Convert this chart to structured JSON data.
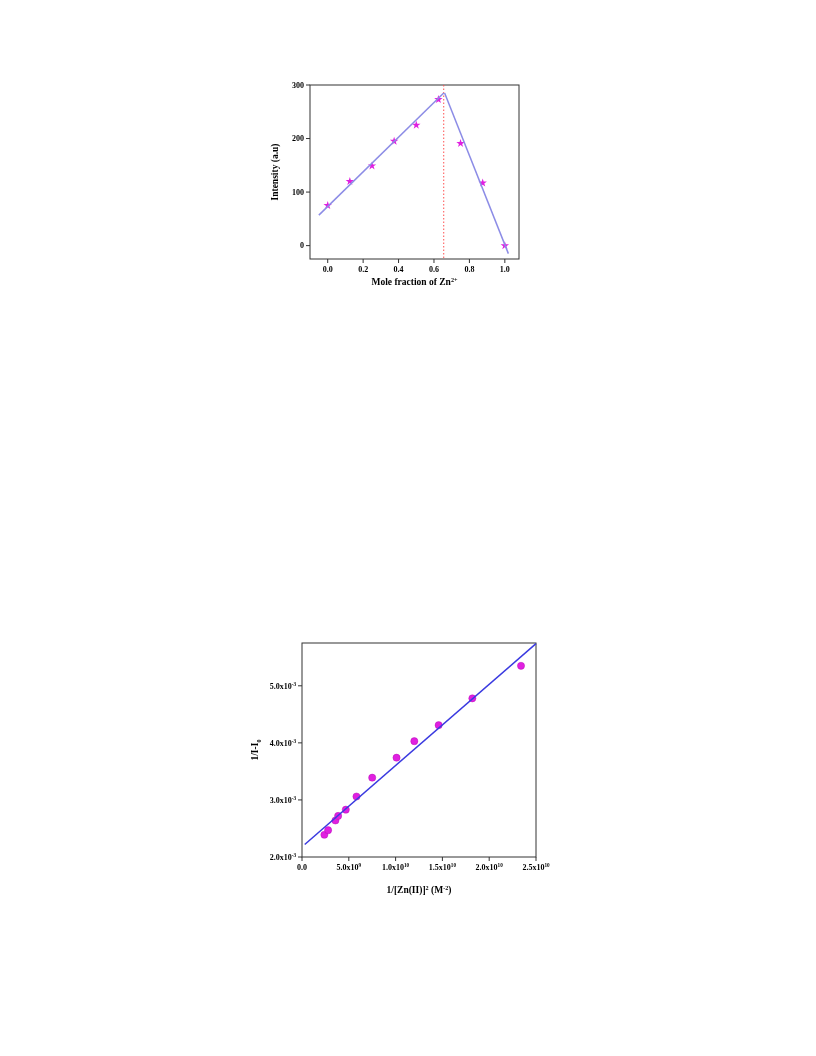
{
  "chart_data": [
    {
      "type": "scatter",
      "xlabel": "Mole fraction of Zn$^{2+}$",
      "ylabel": "Intensity (a.u)",
      "xlim": [
        -0.1,
        1.08
      ],
      "ylim": [
        -25,
        300
      ],
      "xticks": [
        {
          "value": 0,
          "label": "0.0"
        },
        0.2,
        0.4,
        0.6,
        0.8,
        {
          "value": 1,
          "label": "1.0"
        }
      ],
      "yticks": [
        0,
        100,
        200,
        300
      ],
      "series": [
        {
          "marker": "star",
          "color": "#e020e0",
          "x": [
            0,
            0.125,
            0.25,
            0.375,
            0.5,
            0.625,
            0.75,
            0.875,
            1.0
          ],
          "values": [
            75,
            120,
            149,
            195,
            225,
            273,
            191,
            117,
            0
          ]
        },
        {
          "type": "line",
          "marker": "none",
          "color": "#8c8ce6",
          "x": [
            -0.05,
            0.655
          ],
          "values": [
            57,
            285
          ]
        },
        {
          "type": "line",
          "marker": "none",
          "color": "#8c8ce6",
          "x": [
            0.66,
            1.02
          ],
          "values": [
            285,
            -15
          ]
        }
      ],
      "ref_lines": [
        {
          "axis": "x",
          "value": 0.655,
          "color": "#ff5050",
          "line_style": "dotted"
        }
      ]
    },
    {
      "type": "scatter",
      "xlabel": "1/[Zn(II)]$^{2}$ (M$^{-2}$)",
      "ylabel": "1/I-I$_{0}$",
      "xlim": [
        0,
        25000000000.0
      ],
      "ylim": [
        0.002,
        0.00575
      ],
      "xticks": [
        {
          "value": 0,
          "label": "0.0"
        },
        {
          "value": 5000000000.0,
          "label": "5.0x10$^{9}$"
        },
        {
          "value": 10000000000.0,
          "label": "1.0x10$^{10}$"
        },
        {
          "value": 15000000000.0,
          "label": "1.5x10$^{10}$"
        },
        {
          "value": 20000000000.0,
          "label": "2.0x10$^{10}$"
        },
        {
          "value": 25000000000.0,
          "label": "2.5x10$^{10}$"
        }
      ],
      "yticks": [
        {
          "value": 0.002,
          "label": "2.0x10$^{-3}$"
        },
        {
          "value": 0.003,
          "label": "3.0x10$^{-3}$"
        },
        {
          "value": 0.004,
          "label": "4.0x10$^{-3}$"
        },
        {
          "value": 0.005,
          "label": "5.0x10$^{-3}$"
        }
      ],
      "series": [
        {
          "marker": "circle",
          "color": "#e020e0",
          "x": [
            2390000000.0,
            2790000000.0,
            3570000000.0,
            3860000000.0,
            4680000000.0,
            5820000000.0,
            7500000000.0,
            10100000000.0,
            12000000000.0,
            14600000000.0,
            18200000000.0,
            23400000000.0
          ],
          "values": [
            0.00239,
            0.00247,
            0.00264,
            0.00272,
            0.00283,
            0.00306,
            0.00339,
            0.00374,
            0.00403,
            0.00431,
            0.00478,
            0.00535
          ]
        },
        {
          "type": "line",
          "marker": "none",
          "color": "#3a3ae0",
          "x": [
            290000000.0,
            25000000000.0
          ],
          "values": [
            0.00222,
            0.00574
          ]
        }
      ]
    }
  ]
}
